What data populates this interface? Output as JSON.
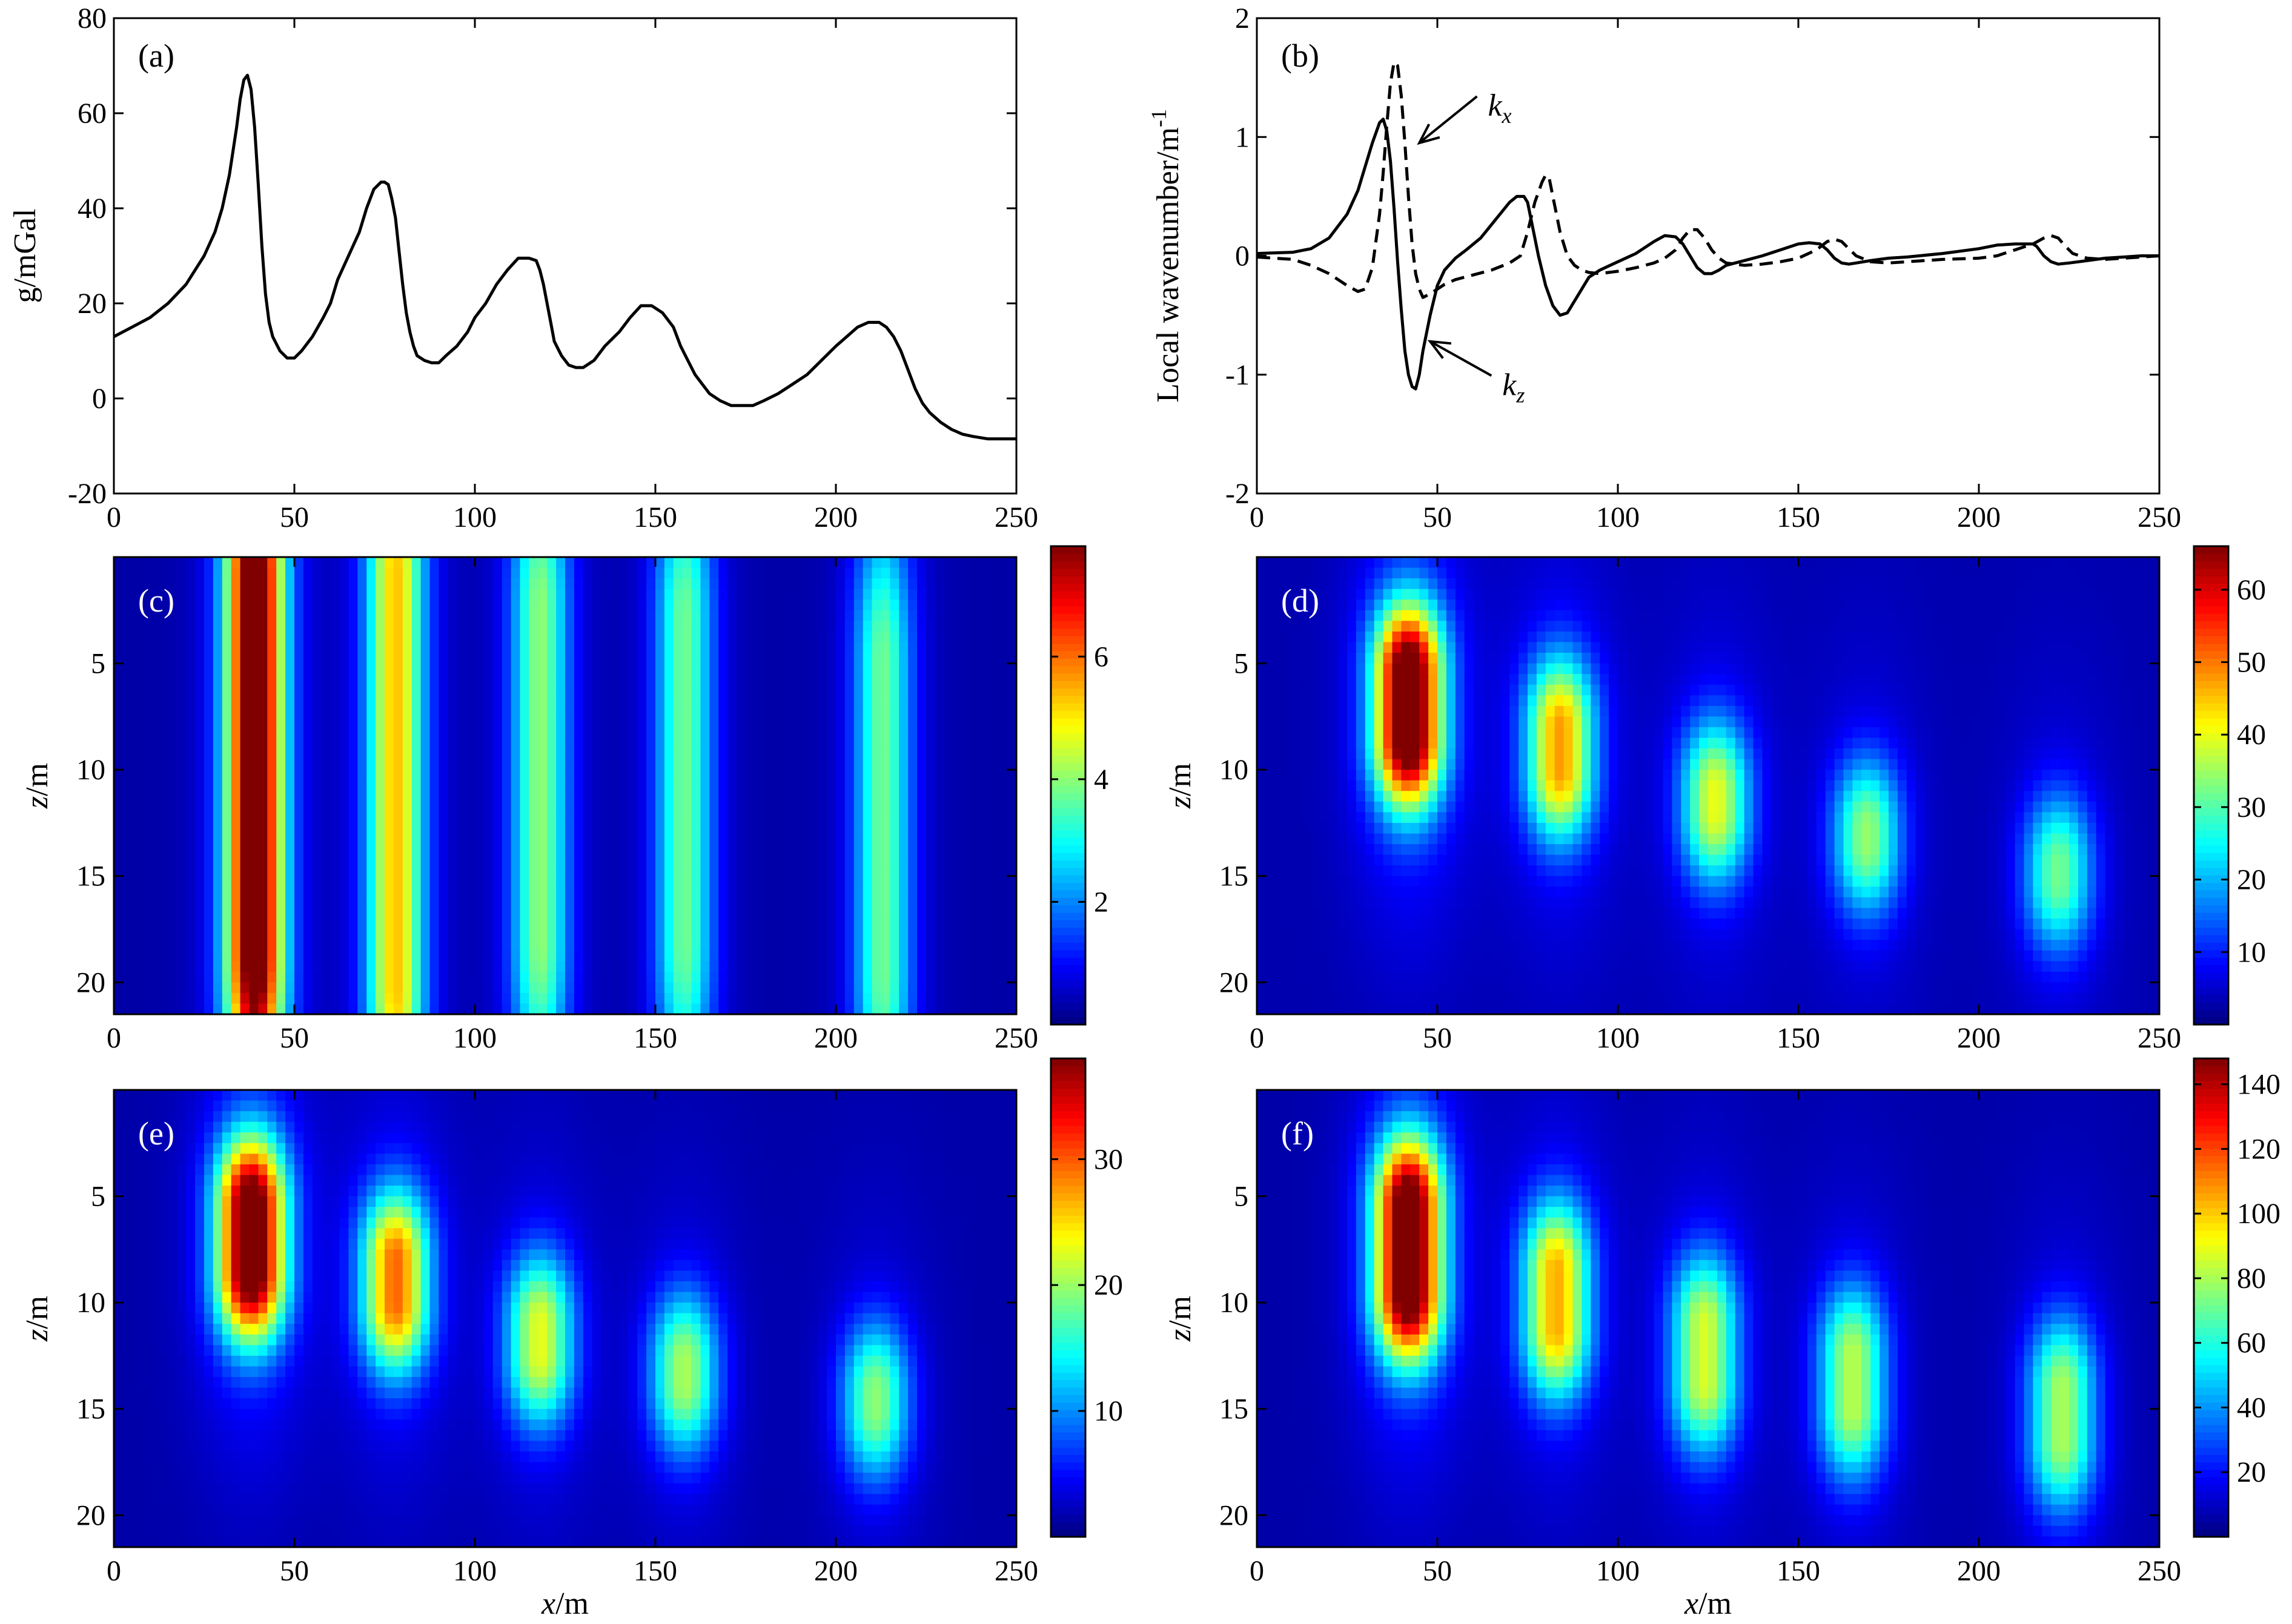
{
  "chart_data": [
    {
      "id": "a",
      "type": "line",
      "panel_label": "(a)",
      "ylabel": "g/mGal",
      "xlim": [
        0,
        250
      ],
      "ylim": [
        -20,
        80
      ],
      "xticks": [
        "0",
        "50",
        "100",
        "150",
        "200",
        "250"
      ],
      "yticks": [
        "-20",
        "0",
        "20",
        "40",
        "60",
        "80"
      ],
      "series": [
        {
          "style": "solid",
          "x": [
            0,
            5,
            10,
            15,
            20,
            25,
            28,
            30,
            32,
            34,
            35,
            36,
            37,
            38,
            39,
            40,
            41,
            42,
            43,
            44,
            46,
            48,
            50,
            52,
            55,
            58,
            60,
            62,
            65,
            68,
            70,
            72,
            74,
            75,
            76,
            77,
            78,
            79,
            80,
            81,
            82,
            83,
            84,
            86,
            88,
            90,
            92,
            95,
            98,
            100,
            103,
            106,
            109,
            112,
            115,
            117,
            118,
            119,
            120,
            121,
            122,
            124,
            126,
            128,
            130,
            133,
            136,
            140,
            143,
            146,
            149,
            152,
            155,
            157,
            159,
            161,
            163,
            165,
            168,
            171,
            174,
            177,
            180,
            184,
            188,
            192,
            196,
            200,
            203,
            206,
            209,
            212,
            214,
            216,
            218,
            220,
            222,
            224,
            226,
            229,
            232,
            235,
            238,
            242,
            246,
            250
          ],
          "y": [
            13,
            15,
            17,
            20,
            24,
            30,
            35,
            40,
            47,
            57,
            63,
            67,
            68,
            65,
            57,
            45,
            32,
            22,
            16,
            13,
            10,
            8.5,
            8.5,
            10,
            13,
            17,
            20,
            25,
            30,
            35,
            40,
            44,
            45.5,
            45.5,
            45,
            42,
            38,
            31,
            24,
            18,
            14,
            11,
            9,
            8,
            7.5,
            7.5,
            9,
            11,
            14,
            17,
            20,
            24,
            27,
            29.5,
            29.5,
            29,
            27,
            24,
            20,
            16,
            12,
            9,
            7,
            6.5,
            6.5,
            8,
            11,
            14,
            17,
            19.5,
            19.5,
            18,
            15,
            11,
            8,
            5,
            3,
            1,
            -0.5,
            -1.5,
            -1.5,
            -1.5,
            -0.5,
            1,
            3,
            5,
            8,
            11,
            13,
            15,
            16,
            16,
            15,
            13,
            10,
            6,
            2,
            -1,
            -3,
            -5,
            -6.5,
            -7.5,
            -8,
            -8.5,
            -8.5,
            -8.5
          ]
        }
      ]
    },
    {
      "id": "b",
      "type": "line",
      "panel_label": "(b)",
      "ylabel": "Local wavenumber/m",
      "ylabel_sup": "-1",
      "xlim": [
        0,
        250
      ],
      "ylim": [
        -2,
        2
      ],
      "xticks": [
        "0",
        "50",
        "100",
        "150",
        "200",
        "250"
      ],
      "yticks": [
        "-2",
        "-1",
        "0",
        "1",
        "2"
      ],
      "annotations": [
        {
          "text": "k",
          "sub": "x",
          "label_at": [
            64,
            1.25
          ],
          "arrow_to": [
            45,
            0.95
          ]
        },
        {
          "text": "k",
          "sub": "z",
          "label_at": [
            68,
            -1.1
          ],
          "arrow_to": [
            48,
            -0.72
          ]
        }
      ],
      "series": [
        {
          "name_text": "k",
          "name_sub": "z",
          "style": "solid",
          "x": [
            0,
            10,
            15,
            20,
            25,
            28,
            30,
            32,
            34,
            35,
            36,
            37,
            38,
            39,
            40,
            41,
            42,
            43,
            44,
            45,
            46,
            48,
            50,
            52,
            55,
            58,
            62,
            66,
            70,
            72,
            74,
            75,
            76,
            78,
            80,
            82,
            84,
            86,
            88,
            90,
            92,
            95,
            100,
            105,
            110,
            113,
            116,
            118,
            120,
            122,
            124,
            126,
            128,
            130,
            135,
            140,
            145,
            150,
            153,
            156,
            158,
            160,
            162,
            164,
            166,
            170,
            175,
            180,
            190,
            200,
            205,
            210,
            215,
            216,
            218,
            220,
            222,
            225,
            230,
            235,
            240,
            245,
            250
          ],
          "y": [
            0.02,
            0.03,
            0.06,
            0.15,
            0.35,
            0.55,
            0.75,
            0.95,
            1.12,
            1.15,
            1.05,
            0.8,
            0.4,
            -0.05,
            -0.45,
            -0.8,
            -1.0,
            -1.1,
            -1.12,
            -1.0,
            -0.8,
            -0.5,
            -0.25,
            -0.12,
            -0.02,
            0.05,
            0.15,
            0.3,
            0.45,
            0.5,
            0.5,
            0.45,
            0.3,
            0.0,
            -0.25,
            -0.42,
            -0.5,
            -0.48,
            -0.38,
            -0.28,
            -0.18,
            -0.12,
            -0.05,
            0.02,
            0.12,
            0.17,
            0.16,
            0.1,
            0.0,
            -0.1,
            -0.15,
            -0.15,
            -0.12,
            -0.08,
            -0.04,
            0.0,
            0.05,
            0.1,
            0.11,
            0.1,
            0.05,
            -0.02,
            -0.06,
            -0.07,
            -0.06,
            -0.04,
            -0.02,
            -0.01,
            0.02,
            0.06,
            0.09,
            0.1,
            0.1,
            0.08,
            0.0,
            -0.05,
            -0.07,
            -0.06,
            -0.04,
            -0.02,
            -0.01,
            0.0,
            0.0
          ]
        },
        {
          "name_text": "k",
          "name_sub": "x",
          "style": "dashed",
          "x": [
            0,
            10,
            15,
            20,
            25,
            28,
            30,
            32,
            34,
            35,
            36,
            37,
            38,
            39,
            40,
            41,
            42,
            43,
            44,
            45,
            46,
            48,
            50,
            52,
            55,
            60,
            65,
            70,
            73,
            75,
            77,
            79,
            80,
            81,
            82,
            84,
            86,
            88,
            90,
            92,
            95,
            100,
            105,
            110,
            113,
            116,
            118,
            120,
            122,
            124,
            126,
            128,
            130,
            135,
            140,
            145,
            150,
            155,
            158,
            160,
            162,
            164,
            166,
            170,
            175,
            180,
            190,
            200,
            205,
            210,
            215,
            218,
            220,
            222,
            224,
            226,
            230,
            235,
            240,
            245,
            250
          ],
          "y": [
            -0.01,
            -0.03,
            -0.08,
            -0.15,
            -0.25,
            -0.3,
            -0.28,
            -0.1,
            0.35,
            0.7,
            1.1,
            1.45,
            1.63,
            1.6,
            1.35,
            0.95,
            0.5,
            0.1,
            -0.15,
            -0.28,
            -0.35,
            -0.32,
            -0.28,
            -0.24,
            -0.2,
            -0.16,
            -0.12,
            -0.06,
            0.0,
            0.2,
            0.45,
            0.62,
            0.68,
            0.65,
            0.5,
            0.2,
            0.0,
            -0.08,
            -0.12,
            -0.14,
            -0.15,
            -0.13,
            -0.1,
            -0.06,
            -0.02,
            0.05,
            0.15,
            0.22,
            0.22,
            0.15,
            0.05,
            -0.02,
            -0.06,
            -0.08,
            -0.07,
            -0.05,
            -0.02,
            0.05,
            0.12,
            0.14,
            0.12,
            0.06,
            0.0,
            -0.05,
            -0.06,
            -0.05,
            -0.03,
            -0.02,
            0.0,
            0.05,
            0.1,
            0.15,
            0.17,
            0.15,
            0.08,
            0.02,
            -0.02,
            -0.03,
            -0.02,
            -0.01,
            0.0
          ]
        }
      ]
    },
    {
      "id": "c",
      "type": "heatmap",
      "panel_label": "(c)",
      "ylabel_var": "z",
      "ylabel_unit": "/m",
      "xlim": [
        0,
        250
      ],
      "zlim": [
        0,
        21.5
      ],
      "yticks": [
        "5",
        "10",
        "15",
        "20"
      ],
      "xticks": [
        "0",
        "50",
        "100",
        "150",
        "200",
        "250"
      ],
      "colorbar": {
        "min": 0,
        "max": 7.8,
        "ticks": [
          "2",
          "4",
          "6"
        ]
      },
      "background": 0.3,
      "sources": [
        {
          "x": 39,
          "z": 6.5,
          "peak": 7.6,
          "zTop": 1.0,
          "zBot": 18.5
        },
        {
          "x": 78,
          "z": 9,
          "peak": 4.5,
          "zTop": 1.0,
          "zBot": 20
        },
        {
          "x": 118,
          "z": 11,
          "peak": 3.3,
          "zTop": 2.5,
          "zBot": 18
        },
        {
          "x": 158,
          "z": 12,
          "peak": 3.1,
          "zTop": 3.0,
          "zBot": 18
        },
        {
          "x": 213,
          "z": 13.5,
          "peak": 3.1,
          "zTop": 5.0,
          "zBot": 19.5
        }
      ]
    },
    {
      "id": "d",
      "type": "heatmap",
      "panel_label": "(d)",
      "ylabel_var": "z",
      "ylabel_unit": "/m",
      "xlim": [
        0,
        250
      ],
      "zlim": [
        0,
        21.5
      ],
      "yticks": [
        "5",
        "10",
        "15",
        "20"
      ],
      "xticks": [
        "0",
        "50",
        "100",
        "150",
        "200",
        "250"
      ],
      "colorbar": {
        "min": 0,
        "max": 66,
        "ticks": [
          "10",
          "20",
          "30",
          "40",
          "50",
          "60"
        ]
      },
      "background": 3,
      "sources": [
        {
          "x": 42,
          "z": 7,
          "peak": 65,
          "zTop": 5.5,
          "zBot": 8.5
        },
        {
          "x": 84,
          "z": 9,
          "peak": 40,
          "zTop": 8.0,
          "zBot": 10
        },
        {
          "x": 127,
          "z": 11.5,
          "peak": 33,
          "zTop": 11,
          "zBot": 12
        },
        {
          "x": 169,
          "z": 13,
          "peak": 28,
          "zTop": 12.8,
          "zBot": 13.5
        },
        {
          "x": 222,
          "z": 14.8,
          "peak": 26,
          "zTop": 14.5,
          "zBot": 15.2
        }
      ]
    },
    {
      "id": "e",
      "type": "heatmap",
      "panel_label": "(e)",
      "ylabel_var": "z",
      "ylabel_unit": "/m",
      "xlabel_var": "x",
      "xlabel_unit": "/m",
      "xlim": [
        0,
        250
      ],
      "zlim": [
        0,
        21.5
      ],
      "yticks": [
        "5",
        "10",
        "15",
        "20"
      ],
      "xticks": [
        "0",
        "50",
        "100",
        "150",
        "200",
        "250"
      ],
      "colorbar": {
        "min": 0,
        "max": 38,
        "ticks": [
          "10",
          "20",
          "30"
        ]
      },
      "background": 1.5,
      "sources": [
        {
          "x": 38,
          "z": 7,
          "peak": 37,
          "zTop": 5.5,
          "zBot": 8.5
        },
        {
          "x": 78,
          "z": 9,
          "peak": 25,
          "zTop": 8.0,
          "zBot": 10
        },
        {
          "x": 118,
          "z": 11.8,
          "peak": 19,
          "zTop": 11,
          "zBot": 12.5
        },
        {
          "x": 158,
          "z": 13.2,
          "peak": 17,
          "zTop": 12.8,
          "zBot": 13.8
        },
        {
          "x": 211,
          "z": 14.5,
          "peak": 16,
          "zTop": 14.2,
          "zBot": 15
        }
      ]
    },
    {
      "id": "f",
      "type": "heatmap",
      "panel_label": "(f)",
      "ylabel_var": "z",
      "ylabel_unit": "/m",
      "xlabel_var": "x",
      "xlabel_unit": "/m",
      "xlim": [
        0,
        250
      ],
      "zlim": [
        0,
        21.5
      ],
      "yticks": [
        "5",
        "10",
        "15",
        "20"
      ],
      "xticks": [
        "0",
        "50",
        "100",
        "150",
        "200",
        "250"
      ],
      "colorbar": {
        "min": 0,
        "max": 148,
        "ticks": [
          "20",
          "40",
          "60",
          "80",
          "100",
          "120",
          "140"
        ]
      },
      "background": 6,
      "sources": [
        {
          "x": 42,
          "z": 7.5,
          "peak": 145,
          "zTop": 5.5,
          "zBot": 9.5
        },
        {
          "x": 83,
          "z": 9.8,
          "peak": 88,
          "zTop": 8.5,
          "zBot": 11.2
        },
        {
          "x": 124,
          "z": 12.2,
          "peak": 72,
          "zTop": 11,
          "zBot": 13.8
        },
        {
          "x": 165,
          "z": 13.8,
          "peak": 68,
          "zTop": 12.5,
          "zBot": 15
        },
        {
          "x": 223,
          "z": 15.5,
          "peak": 66,
          "zTop": 14,
          "zBot": 16.5
        }
      ]
    }
  ]
}
